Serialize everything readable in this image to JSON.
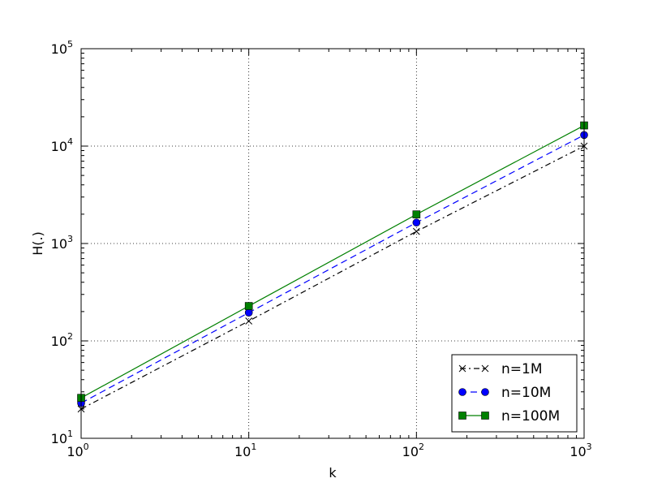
{
  "chart_data": {
    "type": "line",
    "title": "",
    "xlabel": "k",
    "ylabel": "H(.)",
    "xscale": "log",
    "yscale": "log",
    "xlim": [
      1,
      1000
    ],
    "ylim": [
      10,
      100000
    ],
    "grid": true,
    "legend_position": "lower-right",
    "x": [
      1,
      10,
      100,
      1000
    ],
    "x_ticks": [
      {
        "base": "10",
        "exp": "0",
        "value": 1
      },
      {
        "base": "10",
        "exp": "1",
        "value": 10
      },
      {
        "base": "10",
        "exp": "2",
        "value": 100
      },
      {
        "base": "10",
        "exp": "3",
        "value": 1000
      }
    ],
    "y_ticks": [
      {
        "base": "10",
        "exp": "1",
        "value": 10
      },
      {
        "base": "10",
        "exp": "2",
        "value": 100
      },
      {
        "base": "10",
        "exp": "3",
        "value": 1000
      },
      {
        "base": "10",
        "exp": "4",
        "value": 10000
      },
      {
        "base": "10",
        "exp": "5",
        "value": 100000
      }
    ],
    "series": [
      {
        "name": "n=1M",
        "values": [
          20,
          160,
          1330,
          10000
        ],
        "color": "#000000",
        "marker": "x",
        "linestyle": "dashdot"
      },
      {
        "name": "n=10M",
        "values": [
          23,
          195,
          1640,
          13000
        ],
        "color": "#0000ff",
        "marker": "circle",
        "linestyle": "dashed"
      },
      {
        "name": "n=100M",
        "values": [
          26,
          228,
          1990,
          16300
        ],
        "color": "#008000",
        "marker": "square",
        "linestyle": "solid"
      }
    ]
  }
}
